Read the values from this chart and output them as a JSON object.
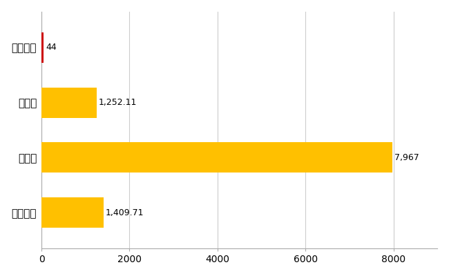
{
  "categories": [
    "長野原町",
    "県平均",
    "県最大",
    "全国平均"
  ],
  "values": [
    44,
    1252.11,
    7967,
    1409.71
  ],
  "bar_colors": [
    "#cc0000",
    "#FFC000",
    "#FFC000",
    "#FFC000"
  ],
  "labels": [
    "44",
    "1,252.11",
    "7,967",
    "1,409.71"
  ],
  "xlim": [
    0,
    9000
  ],
  "xticks": [
    0,
    2000,
    4000,
    6000,
    8000
  ],
  "background_color": "#ffffff",
  "grid_color": "#cccccc",
  "bar_height": 0.55,
  "label_fontsize": 9,
  "tick_fontsize": 10,
  "ytick_fontsize": 11
}
